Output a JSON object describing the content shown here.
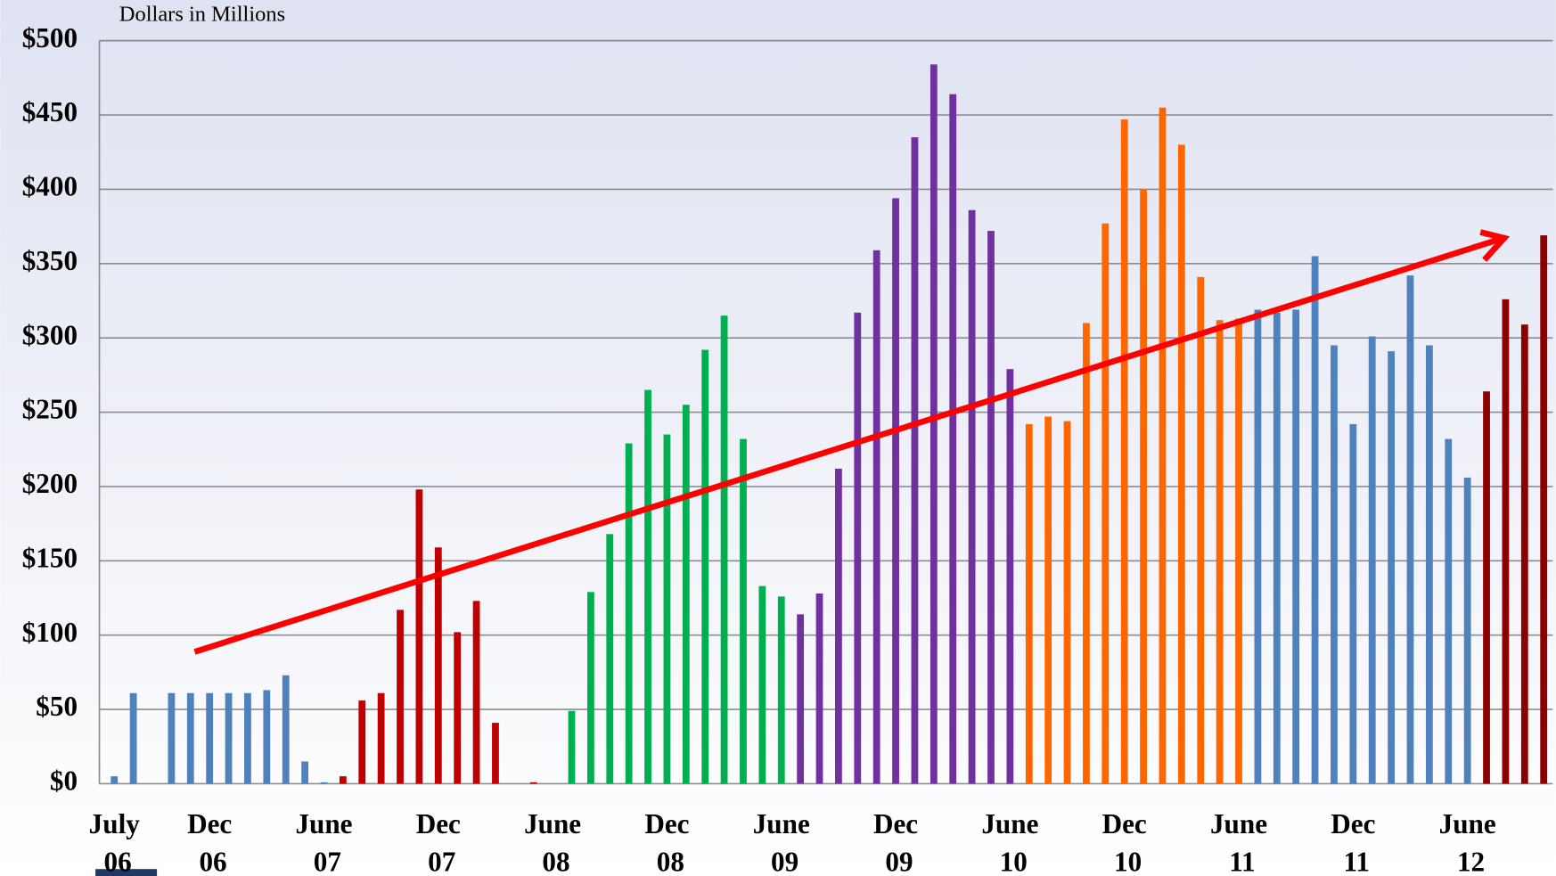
{
  "chart_data": {
    "type": "bar",
    "axis_label": "Dollars in Millions",
    "categories": [
      "July 06",
      null,
      null,
      null,
      null,
      "Dec 06",
      null,
      null,
      null,
      null,
      null,
      "June 07",
      null,
      null,
      null,
      null,
      null,
      "Dec 07",
      null,
      null,
      null,
      null,
      null,
      "June 08",
      null,
      null,
      null,
      null,
      null,
      "Dec 08",
      null,
      null,
      null,
      null,
      null,
      "June 09",
      null,
      null,
      null,
      null,
      null,
      "Dec 09",
      null,
      null,
      null,
      null,
      null,
      "June 10",
      null,
      null,
      null,
      null,
      null,
      "Dec 10",
      null,
      null,
      null,
      null,
      null,
      "June 11",
      null,
      null,
      null,
      null,
      null,
      "Dec 11",
      null,
      null,
      null,
      null,
      null,
      "June 12",
      null,
      null,
      null,
      null
    ],
    "values": [
      5,
      61,
      0,
      61,
      61,
      61,
      61,
      61,
      63,
      73,
      15,
      1,
      5,
      56,
      61,
      117,
      198,
      159,
      102,
      123,
      41,
      0,
      1,
      0,
      49,
      129,
      168,
      229,
      265,
      235,
      255,
      292,
      315,
      232,
      133,
      126,
      114,
      128,
      212,
      317,
      359,
      394,
      435,
      484,
      464,
      386,
      372,
      279,
      242,
      247,
      244,
      310,
      377,
      447,
      400,
      455,
      430,
      341,
      312,
      313,
      319,
      317,
      319,
      355,
      295,
      242,
      301,
      291,
      342,
      295,
      232,
      206,
      264,
      326,
      309,
      369
    ],
    "colors": [
      "#4f81bd",
      "#4f81bd",
      "#4f81bd",
      "#4f81bd",
      "#4f81bd",
      "#4f81bd",
      "#4f81bd",
      "#4f81bd",
      "#4f81bd",
      "#4f81bd",
      "#4f81bd",
      "#4f81bd",
      "#c00000",
      "#c00000",
      "#c00000",
      "#c00000",
      "#c00000",
      "#c00000",
      "#c00000",
      "#c00000",
      "#c00000",
      "#c00000",
      "#c00000",
      "#c00000",
      "#00b050",
      "#00b050",
      "#00b050",
      "#00b050",
      "#00b050",
      "#00b050",
      "#00b050",
      "#00b050",
      "#00b050",
      "#00b050",
      "#00b050",
      "#00b050",
      "#7030a0",
      "#7030a0",
      "#7030a0",
      "#7030a0",
      "#7030a0",
      "#7030a0",
      "#7030a0",
      "#7030a0",
      "#7030a0",
      "#7030a0",
      "#7030a0",
      "#7030a0",
      "#ff6600",
      "#ff6600",
      "#ff6600",
      "#ff6600",
      "#ff6600",
      "#ff6600",
      "#ff6600",
      "#ff6600",
      "#ff6600",
      "#ff6600",
      "#ff6600",
      "#ff6600",
      "#4f81bd",
      "#4f81bd",
      "#4f81bd",
      "#4f81bd",
      "#4f81bd",
      "#4f81bd",
      "#4f81bd",
      "#4f81bd",
      "#4f81bd",
      "#4f81bd",
      "#4f81bd",
      "#4f81bd",
      "#8b0000",
      "#8b0000",
      "#8b0000",
      "#8b0000"
    ],
    "ylim": [
      0,
      500
    ],
    "yticks": [
      {
        "value": 0,
        "label": "$0"
      },
      {
        "value": 50,
        "label": "$50"
      },
      {
        "value": 100,
        "label": "$100"
      },
      {
        "value": 150,
        "label": "$150"
      },
      {
        "value": 200,
        "label": "$200"
      },
      {
        "value": 250,
        "label": "$250"
      },
      {
        "value": 300,
        "label": "$300"
      },
      {
        "value": 350,
        "label": "$350"
      },
      {
        "value": 400,
        "label": "$400"
      },
      {
        "value": 450,
        "label": "$450"
      },
      {
        "value": 500,
        "label": "$500"
      }
    ],
    "grid": true
  }
}
